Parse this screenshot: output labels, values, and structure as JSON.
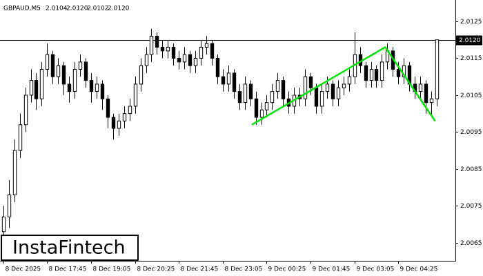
{
  "chart_data": {
    "type": "candlestick",
    "title": "GBPAUD,M5",
    "header_values": [
      "2.0104",
      "2.0120",
      "2.0102",
      "2.0120"
    ],
    "ylim": [
      2.00601,
      2.01308
    ],
    "yticks": [
      2.0065,
      2.0075,
      2.0085,
      2.0095,
      2.0105,
      2.0115,
      2.0125
    ],
    "xlim": [
      -0.6,
      82.4
    ],
    "xticks": [
      {
        "value": 0,
        "label": "8 Dec 2025"
      },
      {
        "value": 8,
        "label": "8 Dec 17:45"
      },
      {
        "value": 16,
        "label": "8 Dec 19:05"
      },
      {
        "value": 24,
        "label": "8 Dec 20:25"
      },
      {
        "value": 32,
        "label": "8 Dec 21:45"
      },
      {
        "value": 40,
        "label": "8 Dec 23:05"
      },
      {
        "value": 48,
        "label": "9 Dec 00:25"
      },
      {
        "value": 56,
        "label": "9 Dec 01:45"
      },
      {
        "value": 64,
        "label": "9 Dec 03:05"
      },
      {
        "value": 72,
        "label": "9 Dec 04:25"
      }
    ],
    "up_color": "#ffffff",
    "down_color": "#000000",
    "outline_color": "#000000",
    "ohlc": [
      [
        2.0068,
        2.0075,
        2.0066,
        2.0072
      ],
      [
        2.0072,
        2.0082,
        2.0069,
        2.0078
      ],
      [
        2.0078,
        2.0093,
        2.0076,
        2.009
      ],
      [
        2.009,
        2.01,
        2.0088,
        2.0097
      ],
      [
        2.0097,
        2.0107,
        2.0095,
        2.0105
      ],
      [
        2.0105,
        2.0112,
        2.0103,
        2.0109
      ],
      [
        2.0109,
        2.0111,
        2.0101,
        2.0104
      ],
      [
        2.0104,
        2.0114,
        2.0102,
        2.0112
      ],
      [
        2.0112,
        2.0119,
        2.011,
        2.0116
      ],
      [
        2.0116,
        2.0117,
        2.0108,
        2.011
      ],
      [
        2.011,
        2.0115,
        2.0108,
        2.0113
      ],
      [
        2.0113,
        2.0114,
        2.0105,
        2.0108
      ],
      [
        2.0108,
        2.011,
        2.0103,
        2.0106
      ],
      [
        2.0106,
        2.0114,
        2.0104,
        2.0112
      ],
      [
        2.0112,
        2.0116,
        2.011,
        2.0114
      ],
      [
        2.0114,
        2.0115,
        2.0107,
        2.0109
      ],
      [
        2.0109,
        2.0111,
        2.0103,
        2.0106
      ],
      [
        2.0106,
        2.011,
        2.0104,
        2.0108
      ],
      [
        2.0108,
        2.0109,
        2.0101,
        2.0104
      ],
      [
        2.0104,
        2.0105,
        2.0096,
        2.0099
      ],
      [
        2.0099,
        2.01,
        2.0093,
        2.0096
      ],
      [
        2.0096,
        2.01,
        2.0094,
        2.0098
      ],
      [
        2.0098,
        2.0102,
        2.0096,
        2.01
      ],
      [
        2.01,
        2.0104,
        2.0098,
        2.0102
      ],
      [
        2.0102,
        2.011,
        2.01,
        2.0108
      ],
      [
        2.0108,
        2.0115,
        2.0106,
        2.0113
      ],
      [
        2.0113,
        2.0118,
        2.0111,
        2.0116
      ],
      [
        2.0116,
        2.0123,
        2.0114,
        2.0121
      ],
      [
        2.0121,
        2.0122,
        2.0116,
        2.0118
      ],
      [
        2.0118,
        2.012,
        2.0115,
        2.0117
      ],
      [
        2.0117,
        2.012,
        2.0115,
        2.0118
      ],
      [
        2.0118,
        2.0119,
        2.0113,
        2.0115
      ],
      [
        2.0115,
        2.0117,
        2.0112,
        2.0114
      ],
      [
        2.0114,
        2.0118,
        2.0112,
        2.0116
      ],
      [
        2.0116,
        2.0117,
        2.0111,
        2.0113
      ],
      [
        2.0113,
        2.0117,
        2.0111,
        2.0115
      ],
      [
        2.0115,
        2.012,
        2.0113,
        2.0118
      ],
      [
        2.0118,
        2.0121,
        2.0116,
        2.0119
      ],
      [
        2.0119,
        2.012,
        2.0113,
        2.0115
      ],
      [
        2.0115,
        2.0116,
        2.0108,
        2.011
      ],
      [
        2.011,
        2.0112,
        2.0106,
        2.0108
      ],
      [
        2.0108,
        2.0113,
        2.0106,
        2.0111
      ],
      [
        2.0111,
        2.0112,
        2.0104,
        2.0106
      ],
      [
        2.0106,
        2.0108,
        2.0101,
        2.0103
      ],
      [
        2.0103,
        2.011,
        2.0101,
        2.0108
      ],
      [
        2.0108,
        2.0109,
        2.0102,
        2.0104
      ],
      [
        2.0104,
        2.0106,
        2.0097,
        2.0099
      ],
      [
        2.0099,
        2.0103,
        2.0097,
        2.0101
      ],
      [
        2.0101,
        2.0105,
        2.0099,
        2.0103
      ],
      [
        2.0103,
        2.0108,
        2.0101,
        2.0106
      ],
      [
        2.0106,
        2.0111,
        2.0104,
        2.0109
      ],
      [
        2.0109,
        2.011,
        2.0102,
        2.0104
      ],
      [
        2.0104,
        2.0106,
        2.01,
        2.0102
      ],
      [
        2.0102,
        2.0107,
        2.01,
        2.0105
      ],
      [
        2.0105,
        2.0107,
        2.0102,
        2.0104
      ],
      [
        2.0104,
        2.0112,
        2.0102,
        2.011
      ],
      [
        2.011,
        2.0111,
        2.0105,
        2.0107
      ],
      [
        2.0107,
        2.0108,
        2.01,
        2.0102
      ],
      [
        2.0102,
        2.0108,
        2.01,
        2.0106
      ],
      [
        2.0106,
        2.011,
        2.0104,
        2.0108
      ],
      [
        2.0108,
        2.0109,
        2.0102,
        2.0104
      ],
      [
        2.0104,
        2.0109,
        2.0102,
        2.0107
      ],
      [
        2.0107,
        2.011,
        2.0105,
        2.0108
      ],
      [
        2.0108,
        2.0112,
        2.0106,
        2.011
      ],
      [
        2.011,
        2.0122,
        2.0108,
        2.0116
      ],
      [
        2.0116,
        2.0118,
        2.0111,
        2.0113
      ],
      [
        2.0113,
        2.0114,
        2.0107,
        2.0109
      ],
      [
        2.0109,
        2.0114,
        2.0107,
        2.0112
      ],
      [
        2.0112,
        2.0113,
        2.0107,
        2.0109
      ],
      [
        2.0109,
        2.0116,
        2.0107,
        2.0114
      ],
      [
        2.0114,
        2.0119,
        2.0112,
        2.0117
      ],
      [
        2.0117,
        2.0118,
        2.011,
        2.0112
      ],
      [
        2.0112,
        2.0114,
        2.0108,
        2.011
      ],
      [
        2.011,
        2.0115,
        2.0108,
        2.0113
      ],
      [
        2.0113,
        2.0114,
        2.0106,
        2.0108
      ],
      [
        2.0108,
        2.011,
        2.0104,
        2.0106
      ],
      [
        2.0106,
        2.011,
        2.0104,
        2.0108
      ],
      [
        2.0108,
        2.0109,
        2.01,
        2.0103
      ],
      [
        2.0103,
        2.0106,
        2.0099,
        2.0104
      ],
      [
        2.0104,
        2.012,
        2.0102,
        2.012
      ]
    ],
    "price_line": {
      "value": 2.012,
      "label": "2.0120"
    },
    "pattern": {
      "color": "#00e600",
      "x": [
        45.3,
        69.6,
        78.7
      ],
      "y": [
        2.0097,
        2.0118,
        2.0098
      ]
    },
    "watermark": "InstaFintech"
  }
}
